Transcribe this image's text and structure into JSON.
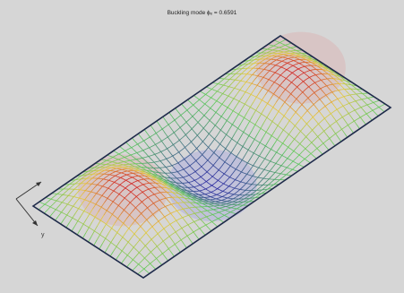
{
  "figure": {
    "title": "Buckling mode ϕₑ = 0.6591",
    "axis_label_y": "y",
    "axis_label_x": ""
  },
  "colors": {
    "background": "#d6d6d6",
    "plate_edge": "#1e2a4a",
    "mesh_low": "#2a2aa0",
    "mesh_mid": "#5ac85a",
    "mesh_high": "#d02020"
  },
  "plate": {
    "grid_lines_u": 40,
    "grid_lines_v": 20,
    "lobes": [
      {
        "sign": 1,
        "u_center": 0.14,
        "v_center": 0.5
      },
      {
        "sign": -1,
        "u_center": 0.5,
        "v_center": 0.5
      },
      {
        "sign": 1,
        "u_center": 0.86,
        "v_center": 0.5
      }
    ]
  }
}
